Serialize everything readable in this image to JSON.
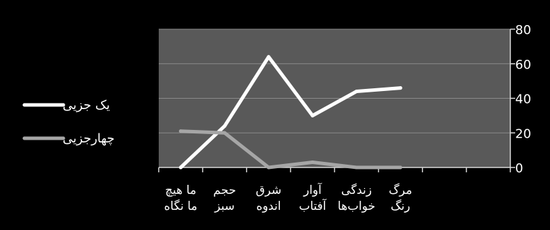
{
  "chart_data": {
    "type": "line",
    "categories": [
      [
        "ما هیچ",
        "ما نگاه"
      ],
      [
        "حجم",
        "سبز"
      ],
      [
        "شرق",
        "اندوه"
      ],
      [
        "آوار",
        "آفتاب"
      ],
      [
        "زندگی",
        "خواب‌ها"
      ],
      [
        "مرگ",
        "رنگ"
      ]
    ],
    "series": [
      {
        "name": "یک جزیی",
        "values": [
          0,
          24,
          64,
          30,
          44,
          46
        ],
        "color": "#ffffff"
      },
      {
        "name": "چهارجزیی",
        "values": [
          21,
          20,
          0,
          3,
          0,
          0
        ],
        "color": "#a6a6a6"
      }
    ],
    "ylim": [
      0,
      80
    ],
    "yticks": [
      0,
      20,
      40,
      60,
      80
    ],
    "grid": true,
    "legend_position": "left",
    "plot_background": "#595959",
    "background": "#000000",
    "axis_color": "#d9d9d9"
  }
}
